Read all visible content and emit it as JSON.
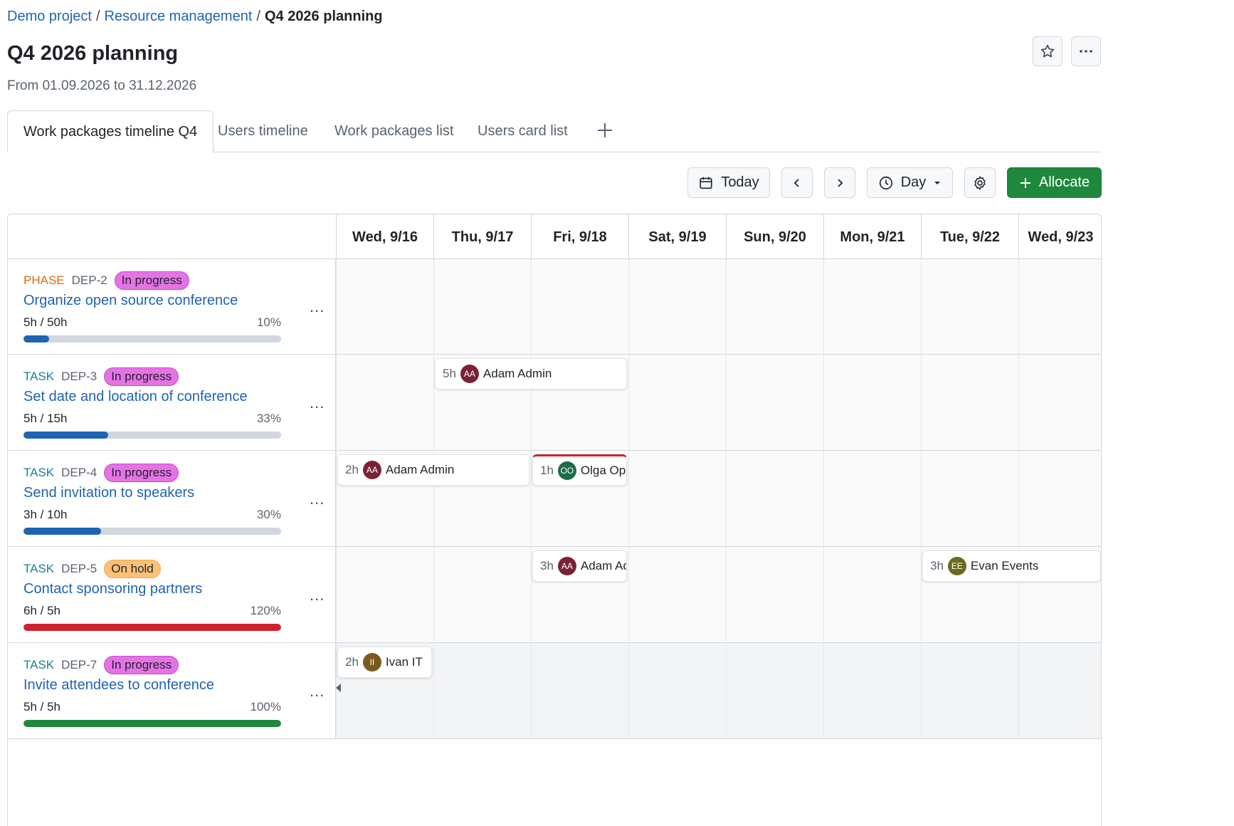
{
  "breadcrumb": {
    "project": "Demo project",
    "module": "Resource management",
    "current": "Q4 2026 planning",
    "separator": "/"
  },
  "page": {
    "title": "Q4 2026 planning",
    "subtitle": "From 01.09.2026 to 31.12.2026"
  },
  "header_buttons": {
    "favorite_icon": "star-icon",
    "more_icon": "kebab-icon"
  },
  "tabs": [
    {
      "label": "Work packages timeline Q4",
      "active": true
    },
    {
      "label": "Users timeline",
      "active": false
    },
    {
      "label": "Work packages list",
      "active": false
    },
    {
      "label": "Users card list",
      "active": false
    }
  ],
  "toolbar": {
    "today_label": "Today",
    "view_label": "Day",
    "allocate_label": "Allocate"
  },
  "days": [
    "Wed, 9/16",
    "Thu, 9/17",
    "Fri, 9/18",
    "Sat, 9/19",
    "Sun, 9/20",
    "Mon, 9/21",
    "Tue, 9/22",
    "Wed, 9/23"
  ],
  "colors": {
    "accent": "#1f883d",
    "link": "#1f64b0",
    "progress_normal": "#1f64b0",
    "progress_over": "#cf222e",
    "progress_done": "#1f883d"
  },
  "work_packages": [
    {
      "type": "PHASE",
      "id": "DEP-2",
      "status": "In progress",
      "name": "Organize open source conference",
      "hours": "5h / 50h",
      "percent": "10%",
      "progress": 0.1,
      "bar_color": "#1f64b0",
      "dots": "..."
    },
    {
      "type": "TASK",
      "id": "DEP-3",
      "status": "In progress",
      "name": "Set date and location of conference",
      "hours": "5h / 15h",
      "percent": "33%",
      "progress": 0.33,
      "bar_color": "#1f64b0",
      "dots": "..."
    },
    {
      "type": "TASK",
      "id": "DEP-4",
      "status": "In progress",
      "name": "Send invitation to speakers",
      "hours": "3h / 10h",
      "percent": "30%",
      "progress": 0.3,
      "bar_color": "#1f64b0",
      "dots": "..."
    },
    {
      "type": "TASK",
      "id": "DEP-5",
      "status": "On hold",
      "name": "Contact sponsoring partners",
      "hours": "6h / 5h",
      "percent": "120%",
      "progress": 1.0,
      "bar_color": "#cf222e",
      "dots": "..."
    },
    {
      "type": "TASK",
      "id": "DEP-7",
      "status": "In progress",
      "name": "Invite attendees to conference",
      "hours": "5h / 5h",
      "percent": "100%",
      "progress": 1.0,
      "bar_color": "#1f883d",
      "dots": "..."
    }
  ],
  "allocations": [
    {
      "row": 1,
      "start_day": 1,
      "span_days": 2,
      "hours": "5h",
      "initials": "AA",
      "user": "Adam Admin",
      "avatar_color": "#7a2335",
      "overbooked": false
    },
    {
      "row": 2,
      "start_day": 0,
      "span_days": 2,
      "hours": "2h",
      "initials": "AA",
      "user": "Adam Admin",
      "avatar_color": "#7a2335",
      "overbooked": false
    },
    {
      "row": 2,
      "start_day": 2,
      "span_days": 1,
      "hours": "1h",
      "initials": "OO",
      "user": "Olga Ops",
      "avatar_color": "#1e6b47",
      "overbooked": true
    },
    {
      "row": 3,
      "start_day": 2,
      "span_days": 1,
      "hours": "3h",
      "initials": "AA",
      "user": "Adam Admin",
      "avatar_color": "#7a2335",
      "overbooked": false
    },
    {
      "row": 3,
      "start_day": 6,
      "span_days": 2,
      "hours": "3h",
      "initials": "EE",
      "user": "Evan Events",
      "avatar_color": "#6b6b1e",
      "overbooked": false
    },
    {
      "row": 4,
      "start_day": 0,
      "span_days": 1,
      "hours": "2h",
      "initials": "II",
      "user": "Ivan IT",
      "avatar_color": "#7a5a1e",
      "overbooked": false
    }
  ]
}
